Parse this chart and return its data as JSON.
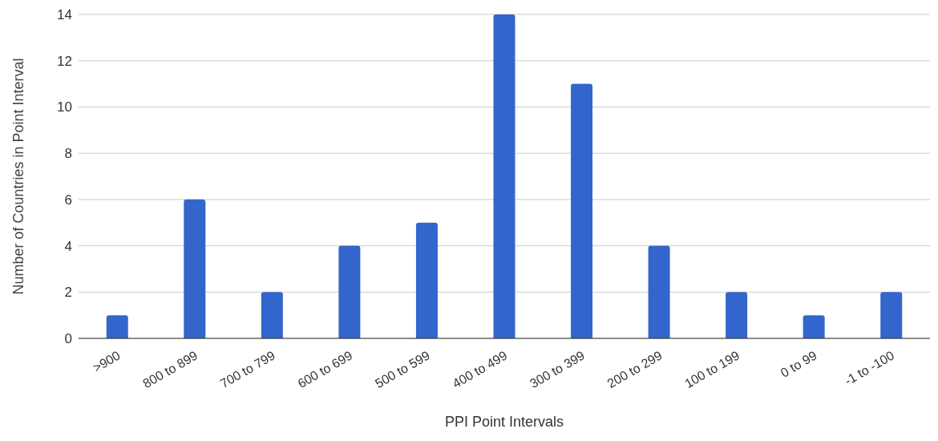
{
  "chart_data": {
    "type": "bar",
    "xlabel": "PPI Point Intervals",
    "ylabel": "Number of Countries in Point Interval",
    "categories": [
      ">900",
      "800 to 899",
      "700 to 799",
      "600 to 699",
      "500 to 599",
      "400 to 499",
      "300 to 399",
      "200 to 299",
      "100 to 199",
      "0 to 99",
      "-1 to -100"
    ],
    "values": [
      1,
      6,
      2,
      4,
      5,
      14,
      11,
      4,
      2,
      1,
      2
    ],
    "color": "#3366cc",
    "ylim": [
      0,
      14
    ],
    "yticks": [
      0,
      2,
      4,
      6,
      8,
      10,
      12,
      14
    ],
    "grid": "y",
    "legend": false
  }
}
